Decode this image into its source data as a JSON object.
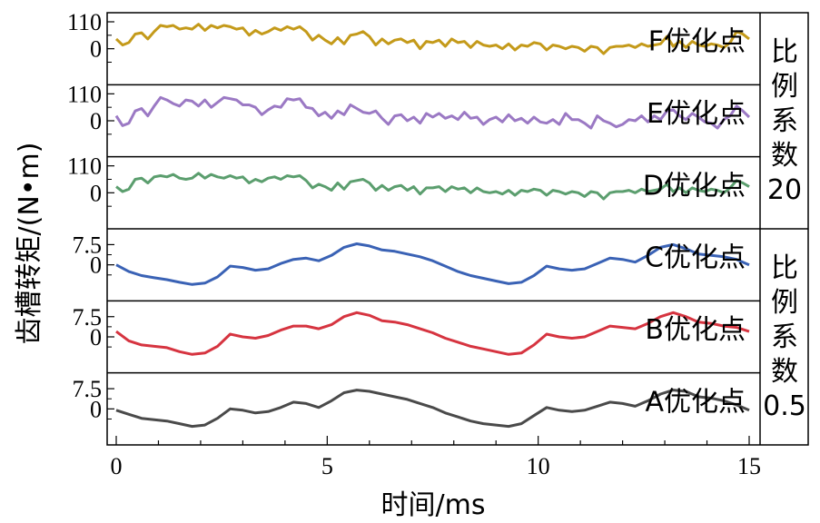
{
  "chart_data": {
    "type": "line",
    "xlabel": "时间/ms",
    "ylabel": "齿槽转矩/(N•m)",
    "x_range": [
      0,
      15
    ],
    "x_ticks": [
      "0",
      "5",
      "10",
      "15"
    ],
    "group_labels": [
      {
        "label": "比例系数20",
        "lines": [
          "比",
          "例",
          "系",
          "数",
          "20"
        ],
        "panels": [
          "F优化点",
          "E优化点",
          "D优化点"
        ]
      },
      {
        "label": "比例系数0.5",
        "lines": [
          "比",
          "例",
          "系",
          "数",
          "0.5"
        ],
        "panels": [
          "C优化点",
          "B优化点",
          "A优化点"
        ]
      }
    ],
    "panels": [
      {
        "name": "F优化点",
        "color": "#c49a1a",
        "ytick_labels": [
          "110",
          "0"
        ],
        "ylim": [
          -110,
          110
        ],
        "x": [
          0,
          0.15,
          0.3,
          0.45,
          0.6,
          0.75,
          0.9,
          1.05,
          1.2,
          1.35,
          1.5,
          1.65,
          1.8,
          1.95,
          2.1,
          2.25,
          2.4,
          2.55,
          2.7,
          2.85,
          3.0,
          3.15,
          3.3,
          3.45,
          3.6,
          3.75,
          3.9,
          4.05,
          4.2,
          4.35,
          4.5,
          4.65,
          4.8,
          4.95,
          5.1,
          5.25,
          5.4,
          5.55,
          5.7,
          5.85,
          6.0,
          6.15,
          6.3,
          6.45,
          6.6,
          6.75,
          6.9,
          7.05,
          7.2,
          7.35,
          7.5,
          7.65,
          7.8,
          7.95,
          8.1,
          8.25,
          8.4,
          8.55,
          8.7,
          8.85,
          9.0,
          9.15,
          9.3,
          9.45,
          9.6,
          9.75,
          9.9,
          10.05,
          10.2,
          10.35,
          10.5,
          10.65,
          10.8,
          10.95,
          11.1,
          11.25,
          11.4,
          11.55,
          11.7,
          11.85,
          12.0,
          12.15,
          12.3,
          12.45,
          12.6,
          12.75,
          12.9,
          13.05,
          13.2,
          13.35,
          13.5,
          13.65,
          13.8,
          13.95,
          14.1,
          14.25,
          14.4,
          14.55,
          14.7,
          14.85,
          15.0
        ],
        "y": [
          40,
          15,
          25,
          60,
          65,
          40,
          70,
          95,
          90,
          95,
          80,
          85,
          80,
          100,
          75,
          95,
          85,
          95,
          90,
          80,
          85,
          55,
          75,
          60,
          70,
          85,
          75,
          90,
          80,
          90,
          70,
          35,
          55,
          35,
          20,
          45,
          20,
          55,
          60,
          70,
          50,
          15,
          40,
          20,
          35,
          40,
          25,
          35,
          0,
          30,
          25,
          35,
          10,
          40,
          25,
          30,
          5,
          30,
          15,
          10,
          15,
          0,
          20,
          -5,
          15,
          10,
          25,
          20,
          -5,
          15,
          10,
          0,
          10,
          5,
          -10,
          10,
          5,
          -20,
          5,
          10,
          10,
          15,
          5,
          20,
          10,
          15,
          20,
          50,
          10,
          30,
          5,
          30,
          15,
          10,
          20,
          15,
          5,
          25,
          70,
          60,
          40
        ]
      },
      {
        "name": "E优化点",
        "color": "#9b79c4",
        "ytick_labels": [
          "110",
          "0"
        ],
        "ylim": [
          -110,
          110
        ],
        "x": [
          0,
          0.15,
          0.3,
          0.45,
          0.6,
          0.75,
          0.9,
          1.05,
          1.2,
          1.35,
          1.5,
          1.65,
          1.8,
          1.95,
          2.1,
          2.25,
          2.4,
          2.55,
          2.7,
          2.85,
          3.0,
          3.15,
          3.3,
          3.45,
          3.6,
          3.75,
          3.9,
          4.05,
          4.2,
          4.35,
          4.5,
          4.65,
          4.8,
          4.95,
          5.1,
          5.25,
          5.4,
          5.55,
          5.7,
          5.85,
          6.0,
          6.15,
          6.3,
          6.45,
          6.6,
          6.75,
          6.9,
          7.05,
          7.2,
          7.35,
          7.5,
          7.65,
          7.8,
          7.95,
          8.1,
          8.25,
          8.4,
          8.55,
          8.7,
          8.85,
          9.0,
          9.15,
          9.3,
          9.45,
          9.6,
          9.75,
          9.9,
          10.05,
          10.2,
          10.35,
          10.5,
          10.65,
          10.8,
          10.95,
          11.1,
          11.25,
          11.4,
          11.55,
          11.7,
          11.85,
          12.0,
          12.15,
          12.3,
          12.45,
          12.6,
          12.75,
          12.9,
          13.05,
          13.2,
          13.35,
          13.5,
          13.65,
          13.8,
          13.95,
          14.1,
          14.25,
          14.4,
          14.55,
          14.7,
          14.85,
          15.0
        ],
        "y": [
          20,
          -20,
          -10,
          40,
          50,
          20,
          60,
          95,
          85,
          70,
          60,
          85,
          80,
          60,
          85,
          55,
          75,
          95,
          90,
          85,
          65,
          65,
          55,
          25,
          45,
          60,
          55,
          90,
          85,
          90,
          55,
          50,
          20,
          35,
          10,
          40,
          25,
          65,
          50,
          35,
          30,
          40,
          10,
          -15,
          20,
          25,
          0,
          15,
          -10,
          30,
          15,
          30,
          10,
          20,
          5,
          35,
          10,
          15,
          -15,
          5,
          15,
          -5,
          25,
          0,
          10,
          -10,
          15,
          -5,
          -10,
          5,
          -15,
          30,
          5,
          5,
          -10,
          -30,
          20,
          0,
          -10,
          -25,
          -15,
          5,
          0,
          20,
          -5,
          20,
          5,
          40,
          45,
          20,
          5,
          30,
          15,
          -5,
          -10,
          -30,
          5,
          20,
          60,
          40,
          15
        ]
      },
      {
        "name": "D优化点",
        "color": "#5b9e6e",
        "ytick_labels": [
          "110",
          "0"
        ],
        "ylim": [
          -110,
          110
        ],
        "x": [
          0,
          0.15,
          0.3,
          0.45,
          0.6,
          0.75,
          0.9,
          1.05,
          1.2,
          1.35,
          1.5,
          1.65,
          1.8,
          1.95,
          2.1,
          2.25,
          2.4,
          2.55,
          2.7,
          2.85,
          3.0,
          3.15,
          3.3,
          3.45,
          3.6,
          3.75,
          3.9,
          4.05,
          4.2,
          4.35,
          4.5,
          4.65,
          4.8,
          4.95,
          5.1,
          5.25,
          5.4,
          5.55,
          5.7,
          5.85,
          6.0,
          6.15,
          6.3,
          6.45,
          6.6,
          6.75,
          6.9,
          7.05,
          7.2,
          7.35,
          7.5,
          7.65,
          7.8,
          7.95,
          8.1,
          8.25,
          8.4,
          8.55,
          8.7,
          8.85,
          9.0,
          9.15,
          9.3,
          9.45,
          9.6,
          9.75,
          9.9,
          10.05,
          10.2,
          10.35,
          10.5,
          10.65,
          10.8,
          10.95,
          11.1,
          11.25,
          11.4,
          11.55,
          11.7,
          11.85,
          12.0,
          12.15,
          12.3,
          12.45,
          12.6,
          12.75,
          12.9,
          13.05,
          13.2,
          13.35,
          13.5,
          13.65,
          13.8,
          13.95,
          14.1,
          14.25,
          14.4,
          14.55,
          14.7,
          14.85,
          15.0
        ],
        "y": [
          25,
          5,
          15,
          55,
          60,
          40,
          65,
          70,
          65,
          75,
          60,
          55,
          60,
          80,
          60,
          75,
          65,
          60,
          70,
          60,
          65,
          40,
          55,
          45,
          60,
          65,
          55,
          70,
          65,
          70,
          50,
          20,
          35,
          25,
          10,
          40,
          15,
          45,
          50,
          55,
          40,
          10,
          30,
          10,
          25,
          30,
          10,
          25,
          -5,
          20,
          20,
          25,
          5,
          25,
          15,
          20,
          0,
          20,
          5,
          0,
          5,
          -5,
          10,
          -10,
          10,
          5,
          15,
          10,
          -10,
          10,
          5,
          -5,
          5,
          0,
          -15,
          5,
          0,
          -25,
          0,
          5,
          5,
          10,
          0,
          15,
          5,
          10,
          15,
          35,
          5,
          20,
          0,
          20,
          10,
          5,
          15,
          10,
          0,
          20,
          50,
          40,
          25
        ]
      },
      {
        "name": "C优化点",
        "color": "#3a62b5",
        "ytick_labels": [
          "7.5",
          "0"
        ],
        "ylim": [
          -10,
          10
        ],
        "x": [
          0,
          0.3,
          0.6,
          0.9,
          1.2,
          1.5,
          1.8,
          2.1,
          2.4,
          2.7,
          3.0,
          3.3,
          3.6,
          3.9,
          4.2,
          4.5,
          4.8,
          5.1,
          5.4,
          5.7,
          6.0,
          6.3,
          6.6,
          6.9,
          7.2,
          7.5,
          7.8,
          8.1,
          8.4,
          8.7,
          9.0,
          9.3,
          9.6,
          9.9,
          10.2,
          10.5,
          10.8,
          11.1,
          11.4,
          11.7,
          12.0,
          12.3,
          12.6,
          12.9,
          13.2,
          13.5,
          13.8,
          14.1,
          14.4,
          14.7,
          15.0
        ],
        "y": [
          0,
          -2.5,
          -4,
          -4.8,
          -5.5,
          -6.5,
          -7.3,
          -6.8,
          -4.5,
          -0.5,
          -1,
          -2,
          -1.5,
          0.5,
          2,
          2.5,
          1.5,
          3.5,
          6.5,
          7.8,
          7,
          5.5,
          5,
          4,
          3,
          1.5,
          -0.5,
          -2.5,
          -4,
          -5,
          -6,
          -7,
          -6.5,
          -4,
          -0.5,
          -1.5,
          -2,
          -1.5,
          0.5,
          2.5,
          2,
          1,
          3.5,
          6.5,
          7.5,
          6,
          4,
          3.5,
          3,
          2,
          0
        ]
      },
      {
        "name": "B优化点",
        "color": "#d63440",
        "ytick_labels": [
          "7.5",
          "0"
        ],
        "ylim": [
          -10,
          10
        ],
        "x": [
          0,
          0.3,
          0.6,
          0.9,
          1.2,
          1.5,
          1.8,
          2.1,
          2.4,
          2.7,
          3.0,
          3.3,
          3.6,
          3.9,
          4.2,
          4.5,
          4.8,
          5.1,
          5.4,
          5.7,
          6.0,
          6.3,
          6.6,
          6.9,
          7.2,
          7.5,
          7.8,
          8.1,
          8.4,
          8.7,
          9.0,
          9.3,
          9.6,
          9.9,
          10.2,
          10.5,
          10.8,
          11.1,
          11.4,
          11.7,
          12.0,
          12.3,
          12.6,
          12.9,
          13.2,
          13.5,
          13.8,
          14.1,
          14.4,
          14.7,
          15.0
        ],
        "y": [
          2,
          -1.5,
          -3,
          -3.5,
          -4,
          -5.5,
          -6.5,
          -6,
          -3.5,
          1,
          0,
          -0.5,
          0.5,
          2.5,
          4,
          4,
          3,
          4.5,
          7.5,
          9,
          8,
          6,
          5.5,
          4.5,
          3,
          1.5,
          -0.5,
          -2,
          -3.5,
          -4.5,
          -5.5,
          -6.5,
          -6,
          -3,
          1,
          0,
          -0.5,
          0,
          2,
          4,
          3.5,
          3,
          5,
          7.5,
          9,
          7.5,
          5.5,
          5,
          4,
          3.5,
          2
        ]
      },
      {
        "name": "A优化点",
        "color": "#4a4a4a",
        "ytick_labels": [
          "7.5",
          "0"
        ],
        "ylim": [
          -10,
          10
        ],
        "x": [
          0,
          0.3,
          0.6,
          0.9,
          1.2,
          1.5,
          1.8,
          2.1,
          2.4,
          2.7,
          3.0,
          3.3,
          3.6,
          3.9,
          4.2,
          4.5,
          4.8,
          5.1,
          5.4,
          5.7,
          6.0,
          6.3,
          6.6,
          6.9,
          7.2,
          7.5,
          7.8,
          8.1,
          8.4,
          8.7,
          9.0,
          9.3,
          9.6,
          9.9,
          10.2,
          10.5,
          10.8,
          11.1,
          11.4,
          11.7,
          12.0,
          12.3,
          12.6,
          12.9,
          13.2,
          13.5,
          13.8,
          14.1,
          14.4,
          14.7,
          15.0
        ],
        "y": [
          -0.5,
          -2,
          -3.5,
          -4,
          -4.5,
          -5.5,
          -6.5,
          -6,
          -3.5,
          0,
          -0.5,
          -1.5,
          -1,
          0.5,
          2.5,
          2,
          0.5,
          3,
          6,
          7,
          6.5,
          5.5,
          4.5,
          3.5,
          2,
          0.5,
          -1.5,
          -3,
          -4.5,
          -5.5,
          -6,
          -6.5,
          -5.5,
          -2.5,
          0.5,
          -0.5,
          -1,
          -0.5,
          1,
          2.5,
          2,
          1,
          3,
          5.5,
          7,
          6.5,
          4.5,
          4,
          3,
          1.5,
          -0.5
        ]
      }
    ]
  }
}
